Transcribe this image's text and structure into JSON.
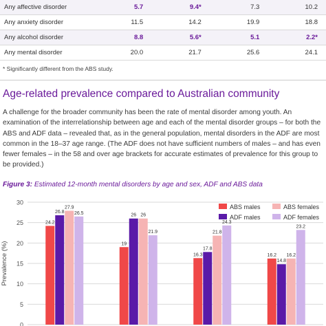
{
  "table": {
    "rows": [
      {
        "label": "Any affective disorder",
        "values": [
          {
            "text": "5.7",
            "sig": true
          },
          {
            "text": "9.4*",
            "sig": true
          },
          {
            "text": "7.3",
            "sig": false
          },
          {
            "text": "10.2",
            "sig": false
          }
        ]
      },
      {
        "label": "Any anxiety disorder",
        "values": [
          {
            "text": "11.5",
            "sig": false
          },
          {
            "text": "14.2",
            "sig": false
          },
          {
            "text": "19.9",
            "sig": false
          },
          {
            "text": "18.8",
            "sig": false
          }
        ]
      },
      {
        "label": "Any alcohol disorder",
        "values": [
          {
            "text": "8.8",
            "sig": true
          },
          {
            "text": "5.6*",
            "sig": true
          },
          {
            "text": "5.1",
            "sig": true
          },
          {
            "text": "2.2*",
            "sig": true
          }
        ]
      },
      {
        "label": "Any mental disorder",
        "values": [
          {
            "text": "20.0",
            "sig": false
          },
          {
            "text": "21.7",
            "sig": false
          },
          {
            "text": "25.6",
            "sig": false
          },
          {
            "text": "24.1",
            "sig": false
          }
        ]
      }
    ]
  },
  "footnote": "* Significantly different from the ABS study.",
  "section_heading": "Age-related prevalence compared to Australian community",
  "body_text": "A challenge for the broader community has been the rate of mental disorder among youth. An examination of the interrelationship between age and each of the mental disorder groups – for both the ABS and ADF data – revealed that, as in the general population, mental disorders in the ADF are most common in the 18–37 age range. (The ADF does not have sufficient numbers of males – and has even fewer females – in the 58 and over age brackets for accurate estimates of prevalence for this group to be provided.)",
  "figure_caption": {
    "label": "Figure 3:",
    "text": " Estimated 12-month mental disorders by age and sex, ADF and ABS data"
  },
  "colors": {
    "accent": "#6a1a9a",
    "abs_males": "#f04848",
    "abs_females": "#f6b4b4",
    "adf_males": "#5a1aa8",
    "adf_females": "#cfb4ea"
  },
  "chart_data": {
    "type": "bar",
    "title": "",
    "xlabel": "",
    "ylabel": "Prevalence (%)",
    "ylim": [
      0,
      30
    ],
    "yticks": [
      "0",
      "5",
      "10",
      "15",
      "20",
      "25",
      "30"
    ],
    "category_count": 4,
    "series": [
      {
        "name": "ABS males",
        "values": [
          24.2,
          19,
          16.3,
          16.2
        ],
        "labels": [
          "24.2",
          "19",
          "16.3",
          "16.2"
        ]
      },
      {
        "name": "ADF males",
        "values": [
          26.8,
          26,
          17.8,
          14.8
        ],
        "labels": [
          "26.8",
          "26",
          "17.8",
          "14.8"
        ]
      },
      {
        "name": "ABS females",
        "values": [
          27.9,
          26,
          21.8,
          16.2
        ],
        "labels": [
          "27.9",
          "26",
          "21.8",
          "16.2"
        ]
      },
      {
        "name": "ADF females",
        "values": [
          26.5,
          21.9,
          24.3,
          23.2
        ],
        "labels": [
          "26.5",
          "21.9",
          "24.3",
          "23.2"
        ]
      }
    ],
    "legend_position": "top-right"
  }
}
